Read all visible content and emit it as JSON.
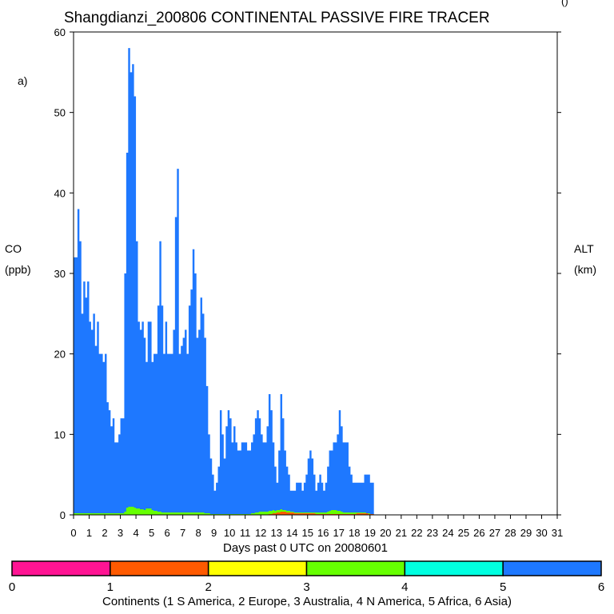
{
  "chart_data": {
    "type": "area",
    "title": "Shangdianzi_200806 CONTINENTAL PASSIVE FIRE TRACER",
    "panel_label": "a)",
    "corner_mark": "()",
    "ylabel_left": [
      "CO",
      "(ppb)"
    ],
    "ylabel_right": [
      "ALT",
      "(km)"
    ],
    "xlabel": "Days past 0 UTC on 20080601",
    "xlim": [
      0,
      31
    ],
    "ylim": [
      0,
      60
    ],
    "x_ticks": [
      0,
      1,
      2,
      3,
      4,
      5,
      6,
      7,
      8,
      9,
      10,
      11,
      12,
      13,
      14,
      15,
      16,
      17,
      18,
      19,
      20,
      21,
      22,
      23,
      24,
      25,
      26,
      27,
      28,
      29,
      30,
      31
    ],
    "y_ticks": [
      0,
      10,
      20,
      30,
      40,
      50,
      60
    ],
    "x_step": 0.125,
    "series": [
      {
        "name": "6 Asia",
        "color": "#1e78ff",
        "values": [
          32,
          32,
          38,
          34,
          25,
          29,
          27,
          29,
          24,
          23,
          25,
          21,
          24,
          20,
          20,
          19,
          20,
          14,
          13,
          11,
          12,
          9,
          9,
          10,
          12,
          12,
          30,
          45,
          58,
          55,
          56,
          52,
          34,
          24,
          23,
          24,
          22,
          19,
          24,
          24,
          19,
          20,
          20,
          26,
          34,
          26,
          20,
          24,
          20,
          20,
          20,
          23,
          37,
          43,
          20,
          21,
          22,
          23,
          20,
          26,
          28,
          33,
          30,
          22,
          23,
          27,
          25,
          22,
          16,
          10,
          7,
          5,
          3,
          4,
          6,
          13,
          10,
          7,
          11,
          13,
          12,
          9,
          11,
          9,
          8,
          8,
          9,
          9,
          9,
          8,
          8,
          9,
          10,
          12,
          13,
          12,
          10,
          9,
          9,
          11,
          15,
          13,
          9,
          6,
          4,
          8,
          15,
          12,
          8,
          6,
          5,
          3,
          3,
          3,
          4,
          4,
          4,
          3,
          4,
          5,
          7,
          8,
          7,
          5,
          3,
          4,
          5,
          4,
          3,
          4,
          6,
          8,
          8,
          9,
          9,
          10,
          13,
          11,
          9,
          9,
          9,
          6,
          5,
          4,
          4,
          4,
          4,
          4,
          4,
          5,
          5,
          5,
          4,
          4
        ]
      },
      {
        "name": "4 N America",
        "color": "#66ff00",
        "values": [
          0.2,
          0.2,
          0.2,
          0.2,
          0.2,
          0.2,
          0.2,
          0.2,
          0.2,
          0.2,
          0.2,
          0.2,
          0.2,
          0.2,
          0.2,
          0.2,
          0.2,
          0.2,
          0.2,
          0.2,
          0.2,
          0.2,
          0.2,
          0.2,
          0.2,
          0.2,
          0.4,
          0.9,
          1.0,
          1.0,
          1.0,
          0.9,
          0.8,
          0.8,
          0.7,
          0.7,
          0.6,
          0.8,
          0.8,
          0.8,
          0.6,
          0.5,
          0.5,
          0.4,
          0.4,
          0.3,
          0.3,
          0.3,
          0.3,
          0.3,
          0.3,
          0.3,
          0.3,
          0.3,
          0.3,
          0.3,
          0.3,
          0.3,
          0.3,
          0.3,
          0.3,
          0.3,
          0.3,
          0.3,
          0.3,
          0.3,
          0.3,
          0.2,
          0.2,
          0.2,
          0.1,
          0.1,
          0.1,
          0.1,
          0.1,
          0.1,
          0.1,
          0.1,
          0.1,
          0.1,
          0.1,
          0.1,
          0.1,
          0.1,
          0.1,
          0.1,
          0.1,
          0.1,
          0.1,
          0.1,
          0.1,
          0.2,
          0.2,
          0.3,
          0.3,
          0.4,
          0.4,
          0.4,
          0.4,
          0.4,
          0.5,
          0.5,
          0.6,
          0.5,
          0.6,
          0.6,
          0.7,
          0.6,
          0.6,
          0.5,
          0.5,
          0.4,
          0.4,
          0.3,
          0.3,
          0.3,
          0.3,
          0.3,
          0.3,
          0.3,
          0.3,
          0.3,
          0.3,
          0.3,
          0.3,
          0.3,
          0.3,
          0.3,
          0.3,
          0.3,
          0.4,
          0.5,
          0.6,
          0.6,
          0.6,
          0.5,
          0.5,
          0.4,
          0.3,
          0.3,
          0.3,
          0.3,
          0.3,
          0.3,
          0.3,
          0.3,
          0.3,
          0.3,
          0.3,
          0.3,
          0.2,
          0.2
        ]
      },
      {
        "name": "2 Europe",
        "color": "#ff5a00",
        "values": [
          0,
          0,
          0,
          0,
          0,
          0,
          0,
          0,
          0,
          0,
          0,
          0,
          0,
          0,
          0,
          0,
          0,
          0,
          0,
          0,
          0,
          0,
          0,
          0,
          0,
          0,
          0,
          0,
          0,
          0,
          0,
          0,
          0,
          0,
          0,
          0,
          0,
          0,
          0,
          0,
          0,
          0,
          0,
          0,
          0,
          0,
          0,
          0,
          0,
          0,
          0,
          0,
          0,
          0,
          0,
          0,
          0,
          0,
          0,
          0,
          0,
          0,
          0,
          0,
          0,
          0,
          0,
          0,
          0,
          0,
          0,
          0,
          0,
          0,
          0,
          0,
          0,
          0,
          0,
          0,
          0,
          0,
          0,
          0,
          0,
          0,
          0,
          0,
          0,
          0,
          0,
          0,
          0,
          0,
          0,
          0,
          0,
          0,
          0,
          0,
          0.1,
          0.1,
          0.2,
          0.2,
          0.3,
          0.3,
          0.4,
          0.4,
          0.4,
          0.3,
          0.3,
          0.3,
          0.3,
          0.2,
          0.2,
          0.2,
          0.2,
          0.2,
          0.2,
          0.2,
          0.2,
          0.2,
          0.2,
          0.2,
          0.1,
          0.1,
          0.1,
          0.1,
          0.1,
          0.1,
          0.1,
          0.1,
          0.1,
          0.1,
          0.1,
          0.1,
          0.1,
          0.1,
          0.1,
          0.1,
          0.1,
          0.1,
          0.1,
          0.1,
          0.1,
          0.2,
          0.2,
          0.2,
          0.2,
          0.2,
          0.2,
          0.1,
          0.1,
          0.1
        ]
      }
    ],
    "colorbar": {
      "label": "Continents (1 S America, 2 Europe, 3 Australia, 4 N America, 5 Africa, 6 Asia)",
      "ticks": [
        "0",
        "1",
        "2",
        "3",
        "4",
        "5",
        "6"
      ],
      "colors": [
        "#ff1493",
        "#ff5a00",
        "#ffff00",
        "#66ff00",
        "#00ffe0",
        "#1e78ff"
      ]
    }
  }
}
